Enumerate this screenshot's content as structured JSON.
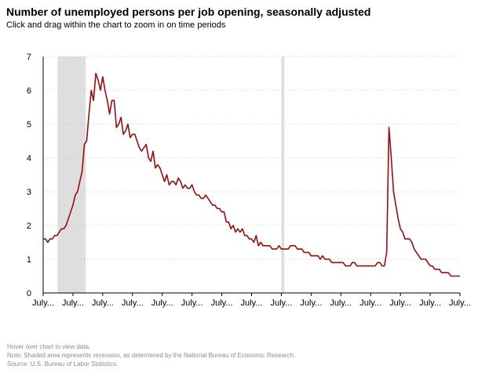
{
  "header": {
    "title": "Number of unemployed persons per job opening, seasonally adjusted",
    "subtitle": "Click and drag within the chart to zoom in on time periods"
  },
  "notes": {
    "hover": "Hover over chart to view data.",
    "note": "Note: Shaded area represents recession, as determined by the National Bureau of Economic Research.",
    "source": "Source: U.S. Bureau of Labor Statistics."
  },
  "colors": {
    "line": "#9b0d0d",
    "recession": "#dedede",
    "grid": "#c8c8c8"
  },
  "chart_data": {
    "type": "line",
    "title": "Number of unemployed persons per job opening, seasonally adjusted",
    "xlabel": "",
    "ylabel": "",
    "ylim": [
      0,
      7
    ],
    "y_ticks": [
      0,
      1,
      2,
      3,
      4,
      5,
      6,
      7
    ],
    "grid": true,
    "x_tick_labels": [
      "July...",
      "July...",
      "July...",
      "July...",
      "July...",
      "July...",
      "July...",
      "July...",
      "July...",
      "July...",
      "July...",
      "July...",
      "July...",
      "July...",
      "July..."
    ],
    "recessions": [
      [
        6.3,
        18.6
      ],
      [
        104,
        105.3
      ]
    ],
    "series": [
      {
        "name": "Unemployed persons per job opening",
        "values": [
          1.6,
          1.6,
          1.5,
          1.6,
          1.6,
          1.7,
          1.7,
          1.8,
          1.9,
          1.9,
          2.0,
          2.2,
          2.4,
          2.6,
          2.9,
          3.0,
          3.3,
          3.6,
          4.4,
          4.5,
          5.3,
          6.0,
          5.7,
          6.5,
          6.3,
          6.0,
          6.4,
          6.0,
          5.7,
          5.3,
          5.7,
          5.7,
          4.9,
          5.0,
          5.2,
          4.7,
          4.8,
          5.0,
          4.6,
          4.7,
          4.7,
          4.5,
          4.3,
          4.2,
          4.3,
          4.4,
          4.0,
          3.9,
          4.2,
          3.7,
          3.8,
          3.7,
          3.5,
          3.3,
          3.5,
          3.2,
          3.3,
          3.3,
          3.2,
          3.4,
          3.3,
          3.1,
          3.2,
          3.1,
          3.1,
          3.2,
          3.0,
          2.9,
          2.9,
          2.8,
          2.8,
          2.9,
          2.8,
          2.7,
          2.6,
          2.6,
          2.5,
          2.5,
          2.4,
          2.4,
          2.1,
          2.1,
          1.9,
          2.0,
          1.8,
          1.9,
          1.8,
          1.9,
          1.7,
          1.7,
          1.6,
          1.6,
          1.5,
          1.7,
          1.4,
          1.5,
          1.4,
          1.4,
          1.4,
          1.4,
          1.3,
          1.3,
          1.3,
          1.4,
          1.3,
          1.3,
          1.3,
          1.3,
          1.4,
          1.4,
          1.4,
          1.3,
          1.3,
          1.3,
          1.2,
          1.2,
          1.2,
          1.1,
          1.1,
          1.1,
          1.1,
          1.0,
          1.1,
          1.0,
          1.0,
          1.0,
          0.9,
          0.9,
          0.9,
          0.9,
          0.9,
          0.9,
          0.8,
          0.8,
          0.8,
          0.9,
          0.9,
          0.8,
          0.8,
          0.8,
          0.8,
          0.8,
          0.8,
          0.8,
          0.8,
          0.8,
          0.9,
          0.9,
          0.8,
          0.8,
          1.2,
          4.9,
          4.0,
          3.0,
          2.6,
          2.2,
          1.9,
          1.8,
          1.6,
          1.6,
          1.6,
          1.5,
          1.3,
          1.2,
          1.1,
          1.0,
          1.0,
          1.0,
          0.9,
          0.8,
          0.8,
          0.7,
          0.7,
          0.7,
          0.6,
          0.6,
          0.6,
          0.6,
          0.5,
          0.5,
          0.5,
          0.5,
          0.5
        ]
      }
    ]
  }
}
